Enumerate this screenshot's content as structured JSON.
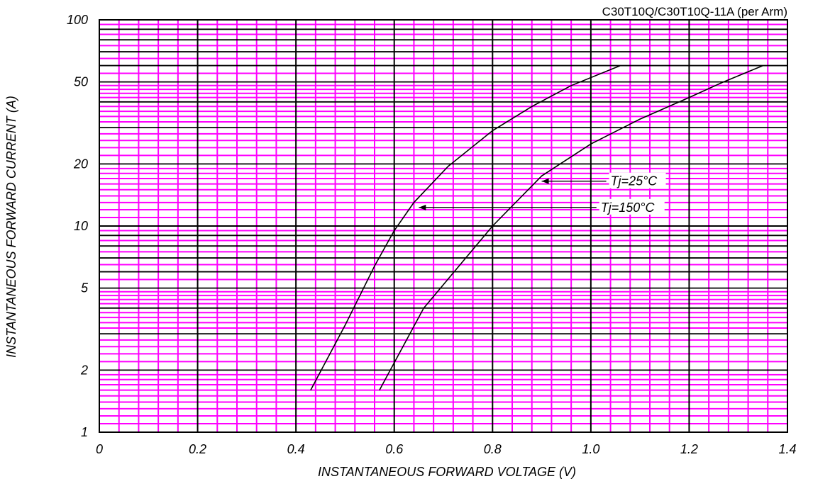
{
  "chart_data": {
    "type": "line",
    "title": "C30T10Q/C30T10Q-11A (per Arm)",
    "xlabel": "INSTANTANEOUS FORWARD VOLTAGE (V)",
    "ylabel": "INSTANTANEOUS FORWARD CURRENT (A)",
    "x_scale": "linear",
    "y_scale": "log",
    "xlim": [
      0,
      1.4
    ],
    "ylim": [
      1,
      100
    ],
    "grid": true,
    "grid_color": "#ff00ff",
    "major_grid_color": "#000000",
    "x_tick_labels": [
      "0",
      "0.2",
      "0.4",
      "0.6",
      "0.8",
      "1.0",
      "1.2",
      "1.4"
    ],
    "y_tick_labels": [
      "1",
      "2",
      "5",
      "10",
      "20",
      "50",
      "100"
    ],
    "series": [
      {
        "name": "Tj=150°C",
        "x": [
          0.43,
          0.5,
          0.56,
          0.6,
          0.64,
          0.71,
          0.8,
          0.88,
          0.96,
          1.06
        ],
        "y": [
          1.6,
          3.3,
          6.4,
          9.5,
          13.0,
          19.5,
          29.0,
          38.0,
          48.0,
          60.0
        ]
      },
      {
        "name": "Tj=25°C",
        "x": [
          0.57,
          0.66,
          0.8,
          0.9,
          1.0,
          1.1,
          1.2,
          1.27,
          1.35
        ],
        "y": [
          1.6,
          4.0,
          10.0,
          17.5,
          25.0,
          33.0,
          42.0,
          50.0,
          60.0
        ]
      }
    ],
    "annotations": [
      {
        "text": "Tj=25°C",
        "x": 1.04,
        "y": 16.5,
        "arrow_to": [
          0.9,
          16.5
        ]
      },
      {
        "text": "Tj=150°C",
        "x": 1.02,
        "y": 12.3,
        "arrow_to": [
          0.65,
          12.3
        ]
      }
    ]
  }
}
